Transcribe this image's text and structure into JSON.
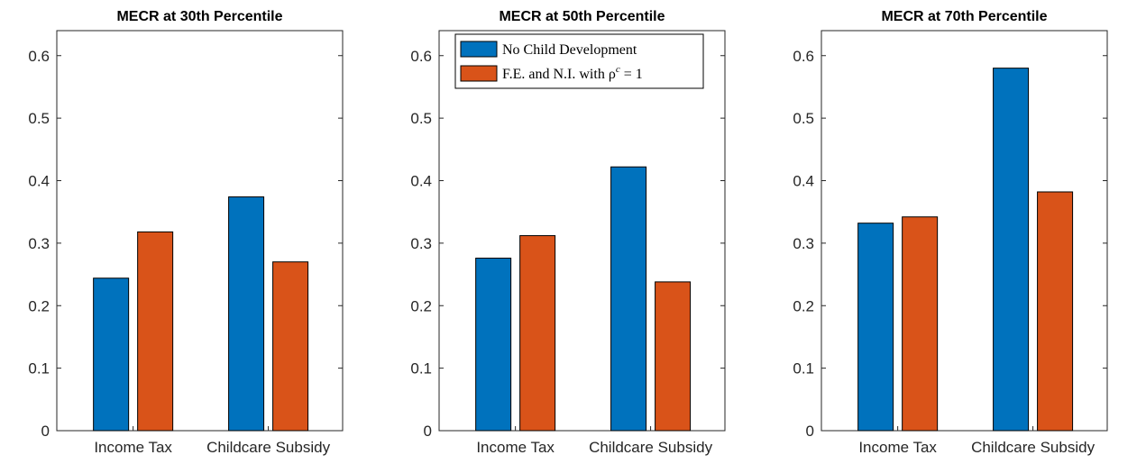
{
  "chart_data": [
    {
      "type": "bar",
      "title": "MECR at 30th Percentile",
      "categories": [
        "Income Tax",
        "Childcare Subsidy"
      ],
      "series": [
        {
          "name": "No Child Development",
          "values": [
            0.244,
            0.374
          ]
        },
        {
          "name": "F.E. and N.I. with ρc = 1",
          "values": [
            0.318,
            0.27
          ]
        }
      ],
      "ylim": [
        0,
        0.64
      ],
      "yticks": [
        "0",
        "0.1",
        "0.2",
        "0.3",
        "0.4",
        "0.5",
        "0.6"
      ],
      "legend": false
    },
    {
      "type": "bar",
      "title": "MECR at 50th Percentile",
      "categories": [
        "Income Tax",
        "Childcare Subsidy"
      ],
      "series": [
        {
          "name": "No Child Development",
          "values": [
            0.276,
            0.422
          ]
        },
        {
          "name": "F.E. and N.I. with ρc = 1",
          "values": [
            0.312,
            0.238
          ]
        }
      ],
      "ylim": [
        0,
        0.64
      ],
      "yticks": [
        "0",
        "0.1",
        "0.2",
        "0.3",
        "0.4",
        "0.5",
        "0.6"
      ],
      "legend": true,
      "legend_location": "top-left"
    },
    {
      "type": "bar",
      "title": "MECR at 70th Percentile",
      "categories": [
        "Income Tax",
        "Childcare Subsidy"
      ],
      "series": [
        {
          "name": "No Child Development",
          "values": [
            0.332,
            0.58
          ]
        },
        {
          "name": "F.E. and N.I. with ρc = 1",
          "values": [
            0.342,
            0.382
          ]
        }
      ],
      "ylim": [
        0,
        0.64
      ],
      "yticks": [
        "0",
        "0.1",
        "0.2",
        "0.3",
        "0.4",
        "0.5",
        "0.6"
      ],
      "legend": false
    }
  ],
  "legend": {
    "entries": [
      "No Child Development",
      "F.E. and N.I. with ρc = 1"
    ],
    "entry_2_prefix": "F.E. and N.I. with ρ",
    "entry_2_superscript": "c",
    "entry_2_suffix": " = 1"
  },
  "colors": {
    "series_1": "#0072BD",
    "series_2": "#D95319",
    "axis": "#262626"
  }
}
